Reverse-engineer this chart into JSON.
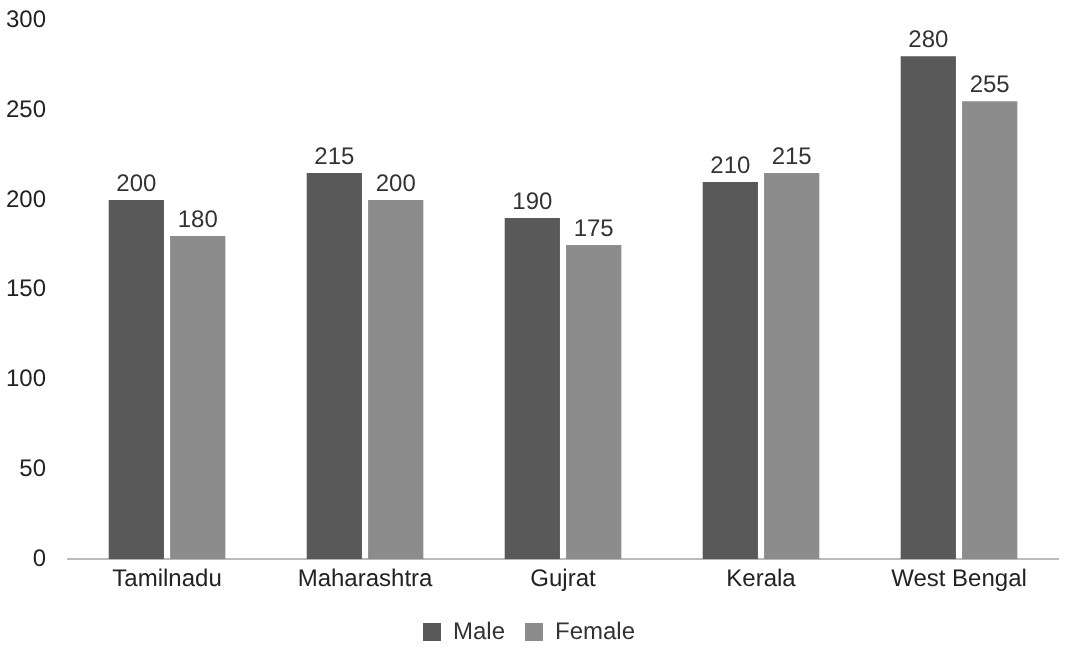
{
  "chart_data": {
    "type": "bar",
    "categories": [
      "Tamilnadu",
      "Maharashtra",
      "Gujrat",
      "Kerala",
      "West Bengal"
    ],
    "series": [
      {
        "name": "Male",
        "color": "#595959",
        "values": [
          200,
          215,
          190,
          210,
          280
        ]
      },
      {
        "name": "Female",
        "color": "#8c8c8c",
        "values": [
          180,
          200,
          175,
          215,
          255
        ]
      }
    ],
    "ylim": [
      0,
      300
    ],
    "yticks": [
      0,
      50,
      100,
      150,
      200,
      250,
      300
    ],
    "grid": false,
    "legend": "bottom",
    "data_labels": true
  }
}
